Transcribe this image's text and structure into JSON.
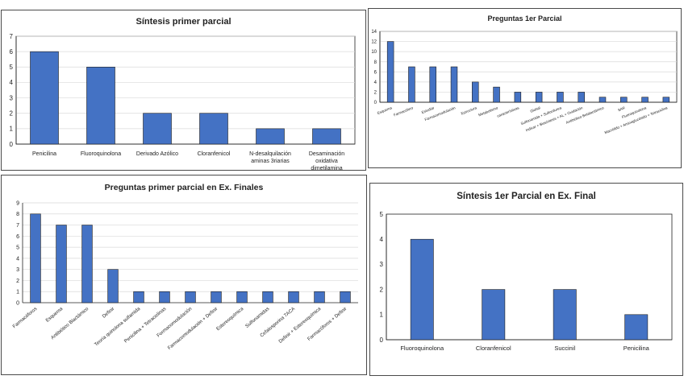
{
  "chart_data": [
    {
      "type": "bar",
      "title": "Síntesis primer parcial",
      "categories": [
        "Penicilina",
        "Fluoroquinolona",
        "Derivado Azólico",
        "Cloranfenicol",
        "N-desalquilación aminas 3riarias",
        "Desaminación oxidativa dimetilamina"
      ],
      "category_lines": [
        [
          "Penicilina"
        ],
        [
          "Fluoroquinolona"
        ],
        [
          "Derivado Azólico"
        ],
        [
          "Cloranfenicol"
        ],
        [
          "N-desalquilación",
          "aminas 3riarias"
        ],
        [
          "Desaminación",
          "oxidativa",
          "dimetilamina"
        ]
      ],
      "values": [
        6,
        5,
        2,
        2,
        1,
        1
      ],
      "ylim": [
        0,
        7
      ],
      "yticks": [
        0,
        1,
        2,
        3,
        4,
        5,
        6,
        7
      ],
      "grid": true,
      "bar_color": "#4472c4"
    },
    {
      "type": "bar",
      "title": "Preguntas 1er Parcial",
      "categories": [
        "Esquema",
        "Farmacóforo",
        "Estudiar",
        "Farmacomodulación",
        "Estructura",
        "Metabolismo",
        "características",
        "Global",
        "Sulfonamida + Sulfonilurea",
        "Indicar + Biosíntesis + AL + Oxidación",
        "Antibiótico Betalactámico",
        "SAR",
        "Fluoroquinolona",
        "Macrólido + Aminoglucósido + Tetraciclina"
      ],
      "values": [
        12,
        7,
        7,
        7,
        4,
        3,
        2,
        2,
        2,
        2,
        1,
        1,
        1,
        1
      ],
      "ylim": [
        0,
        14
      ],
      "yticks": [
        0,
        2,
        4,
        6,
        8,
        10,
        12,
        14
      ],
      "grid": true,
      "bar_color": "#4472c4"
    },
    {
      "type": "bar",
      "title": "Preguntas primer parcial en Ex. Finales",
      "categories": [
        "Farmacóforos",
        "Esquema",
        "Antibiótico Blactámico",
        "Definir",
        "Teoría quinolona sulfamida",
        "Penicilina + Tetraciclinas",
        "Formacomodulación",
        "Farmacomodulación + Definir",
        "Estereoquímica",
        "Sulfonamidas",
        "Cefalosporina 7ACA",
        "Definir + Estereoquímica",
        "Farmacóforos + Definir"
      ],
      "values": [
        8,
        7,
        7,
        3,
        1,
        1,
        1,
        1,
        1,
        1,
        1,
        1,
        1
      ],
      "ylim": [
        0,
        9
      ],
      "yticks": [
        0,
        1,
        2,
        3,
        4,
        5,
        6,
        7,
        8,
        9
      ],
      "grid": true,
      "bar_color": "#4472c4"
    },
    {
      "type": "bar",
      "title": "Síntesis 1er Parcial en Ex. Final",
      "categories": [
        "Fluoroquinolona",
        "Cloranfenicol",
        "Succinil",
        "Penicilina"
      ],
      "values": [
        4,
        2,
        2,
        1
      ],
      "ylim": [
        0,
        5
      ],
      "yticks": [
        0,
        1,
        2,
        3,
        4,
        5
      ],
      "grid": false,
      "bar_color": "#4472c4"
    }
  ]
}
